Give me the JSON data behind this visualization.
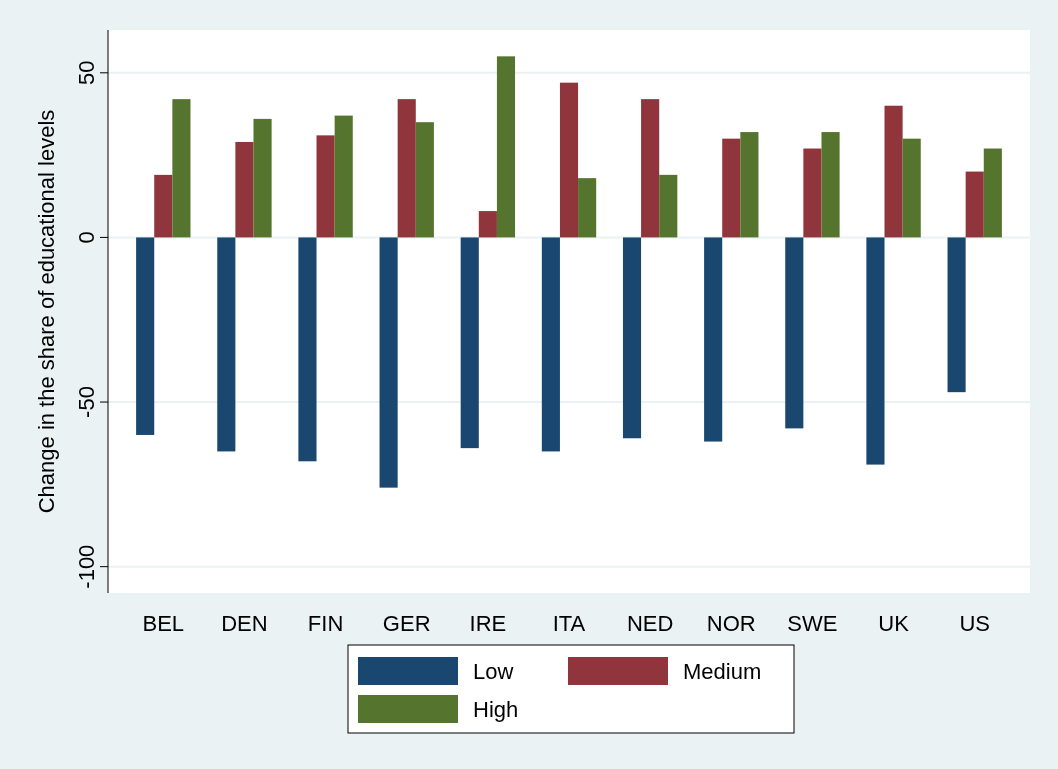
{
  "chart_data": {
    "type": "bar",
    "ylabel": "Change in the share of educational levels",
    "categories": [
      "BEL",
      "DEN",
      "FIN",
      "GER",
      "IRE",
      "ITA",
      "NED",
      "NOR",
      "SWE",
      "UK",
      "US"
    ],
    "series": [
      {
        "name": "Low",
        "color": "#1a476f",
        "values": [
          -60,
          -65,
          -68,
          -76,
          -64,
          -65,
          -61,
          -62,
          -58,
          -69,
          -47
        ]
      },
      {
        "name": "Medium",
        "color": "#90353b",
        "values": [
          19,
          29,
          31,
          42,
          8,
          47,
          42,
          30,
          27,
          40,
          20
        ]
      },
      {
        "name": "High",
        "color": "#55752f",
        "values": [
          42,
          36,
          37,
          35,
          55,
          18,
          19,
          32,
          32,
          30,
          27
        ]
      }
    ],
    "ylim": [
      -108,
      63
    ],
    "yticks": [
      -100,
      -50,
      0,
      50
    ],
    "grid": "y",
    "legend": "bottom"
  }
}
